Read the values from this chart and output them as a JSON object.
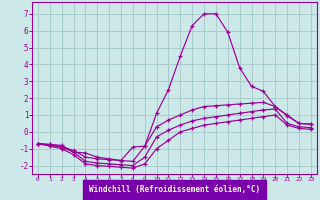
{
  "xlabel": "Windchill (Refroidissement éolien,°C)",
  "bg_color": "#cde8e8",
  "label_bg": "#7700aa",
  "grid_color": "#aacccc",
  "line_color": "#990099",
  "xlim": [
    -0.5,
    23.5
  ],
  "ylim": [
    -2.5,
    7.7
  ],
  "yticks": [
    -2,
    -1,
    0,
    1,
    2,
    3,
    4,
    5,
    6,
    7
  ],
  "xticks": [
    0,
    1,
    2,
    3,
    4,
    5,
    6,
    7,
    8,
    9,
    10,
    11,
    12,
    13,
    14,
    15,
    16,
    17,
    18,
    19,
    20,
    21,
    22,
    23
  ],
  "line1_x": [
    0,
    1,
    2,
    3,
    4,
    5,
    6,
    7,
    8,
    9,
    10,
    11,
    12,
    13,
    14,
    15,
    16,
    17,
    18,
    19,
    20,
    21,
    22,
    23
  ],
  "line1_y": [
    -0.7,
    -0.75,
    -0.8,
    -1.2,
    -1.25,
    -1.5,
    -1.6,
    -1.7,
    -0.9,
    -0.85,
    1.1,
    2.5,
    4.5,
    6.3,
    7.0,
    7.0,
    5.9,
    3.8,
    2.7,
    2.4,
    1.5,
    1.0,
    0.5,
    0.45
  ],
  "line2_x": [
    0,
    1,
    2,
    3,
    4,
    5,
    6,
    7,
    8,
    9,
    10,
    11,
    12,
    13,
    14,
    15,
    16,
    17,
    18,
    19,
    20,
    21,
    22,
    23
  ],
  "line2_y": [
    -0.7,
    -0.75,
    -0.9,
    -1.1,
    -1.5,
    -1.6,
    -1.65,
    -1.7,
    -1.75,
    -0.85,
    0.3,
    0.7,
    1.0,
    1.3,
    1.5,
    1.55,
    1.6,
    1.65,
    1.7,
    1.75,
    1.5,
    0.95,
    0.5,
    0.45
  ],
  "line3_x": [
    0,
    1,
    2,
    3,
    4,
    5,
    6,
    7,
    8,
    9,
    10,
    11,
    12,
    13,
    14,
    15,
    16,
    17,
    18,
    19,
    20,
    21,
    22,
    23
  ],
  "line3_y": [
    -0.7,
    -0.8,
    -0.9,
    -1.2,
    -1.75,
    -1.85,
    -1.9,
    -1.95,
    -2.0,
    -1.5,
    -0.3,
    0.1,
    0.4,
    0.65,
    0.8,
    0.9,
    1.0,
    1.1,
    1.2,
    1.3,
    1.35,
    0.5,
    0.3,
    0.25
  ],
  "line4_x": [
    0,
    1,
    2,
    3,
    4,
    5,
    6,
    7,
    8,
    9,
    10,
    11,
    12,
    13,
    14,
    15,
    16,
    17,
    18,
    19,
    20,
    21,
    22,
    23
  ],
  "line4_y": [
    -0.7,
    -0.85,
    -1.0,
    -1.35,
    -1.9,
    -2.0,
    -2.05,
    -2.1,
    -2.15,
    -1.9,
    -1.0,
    -0.5,
    0.0,
    0.2,
    0.4,
    0.5,
    0.6,
    0.7,
    0.8,
    0.9,
    1.0,
    0.4,
    0.2,
    0.15
  ]
}
